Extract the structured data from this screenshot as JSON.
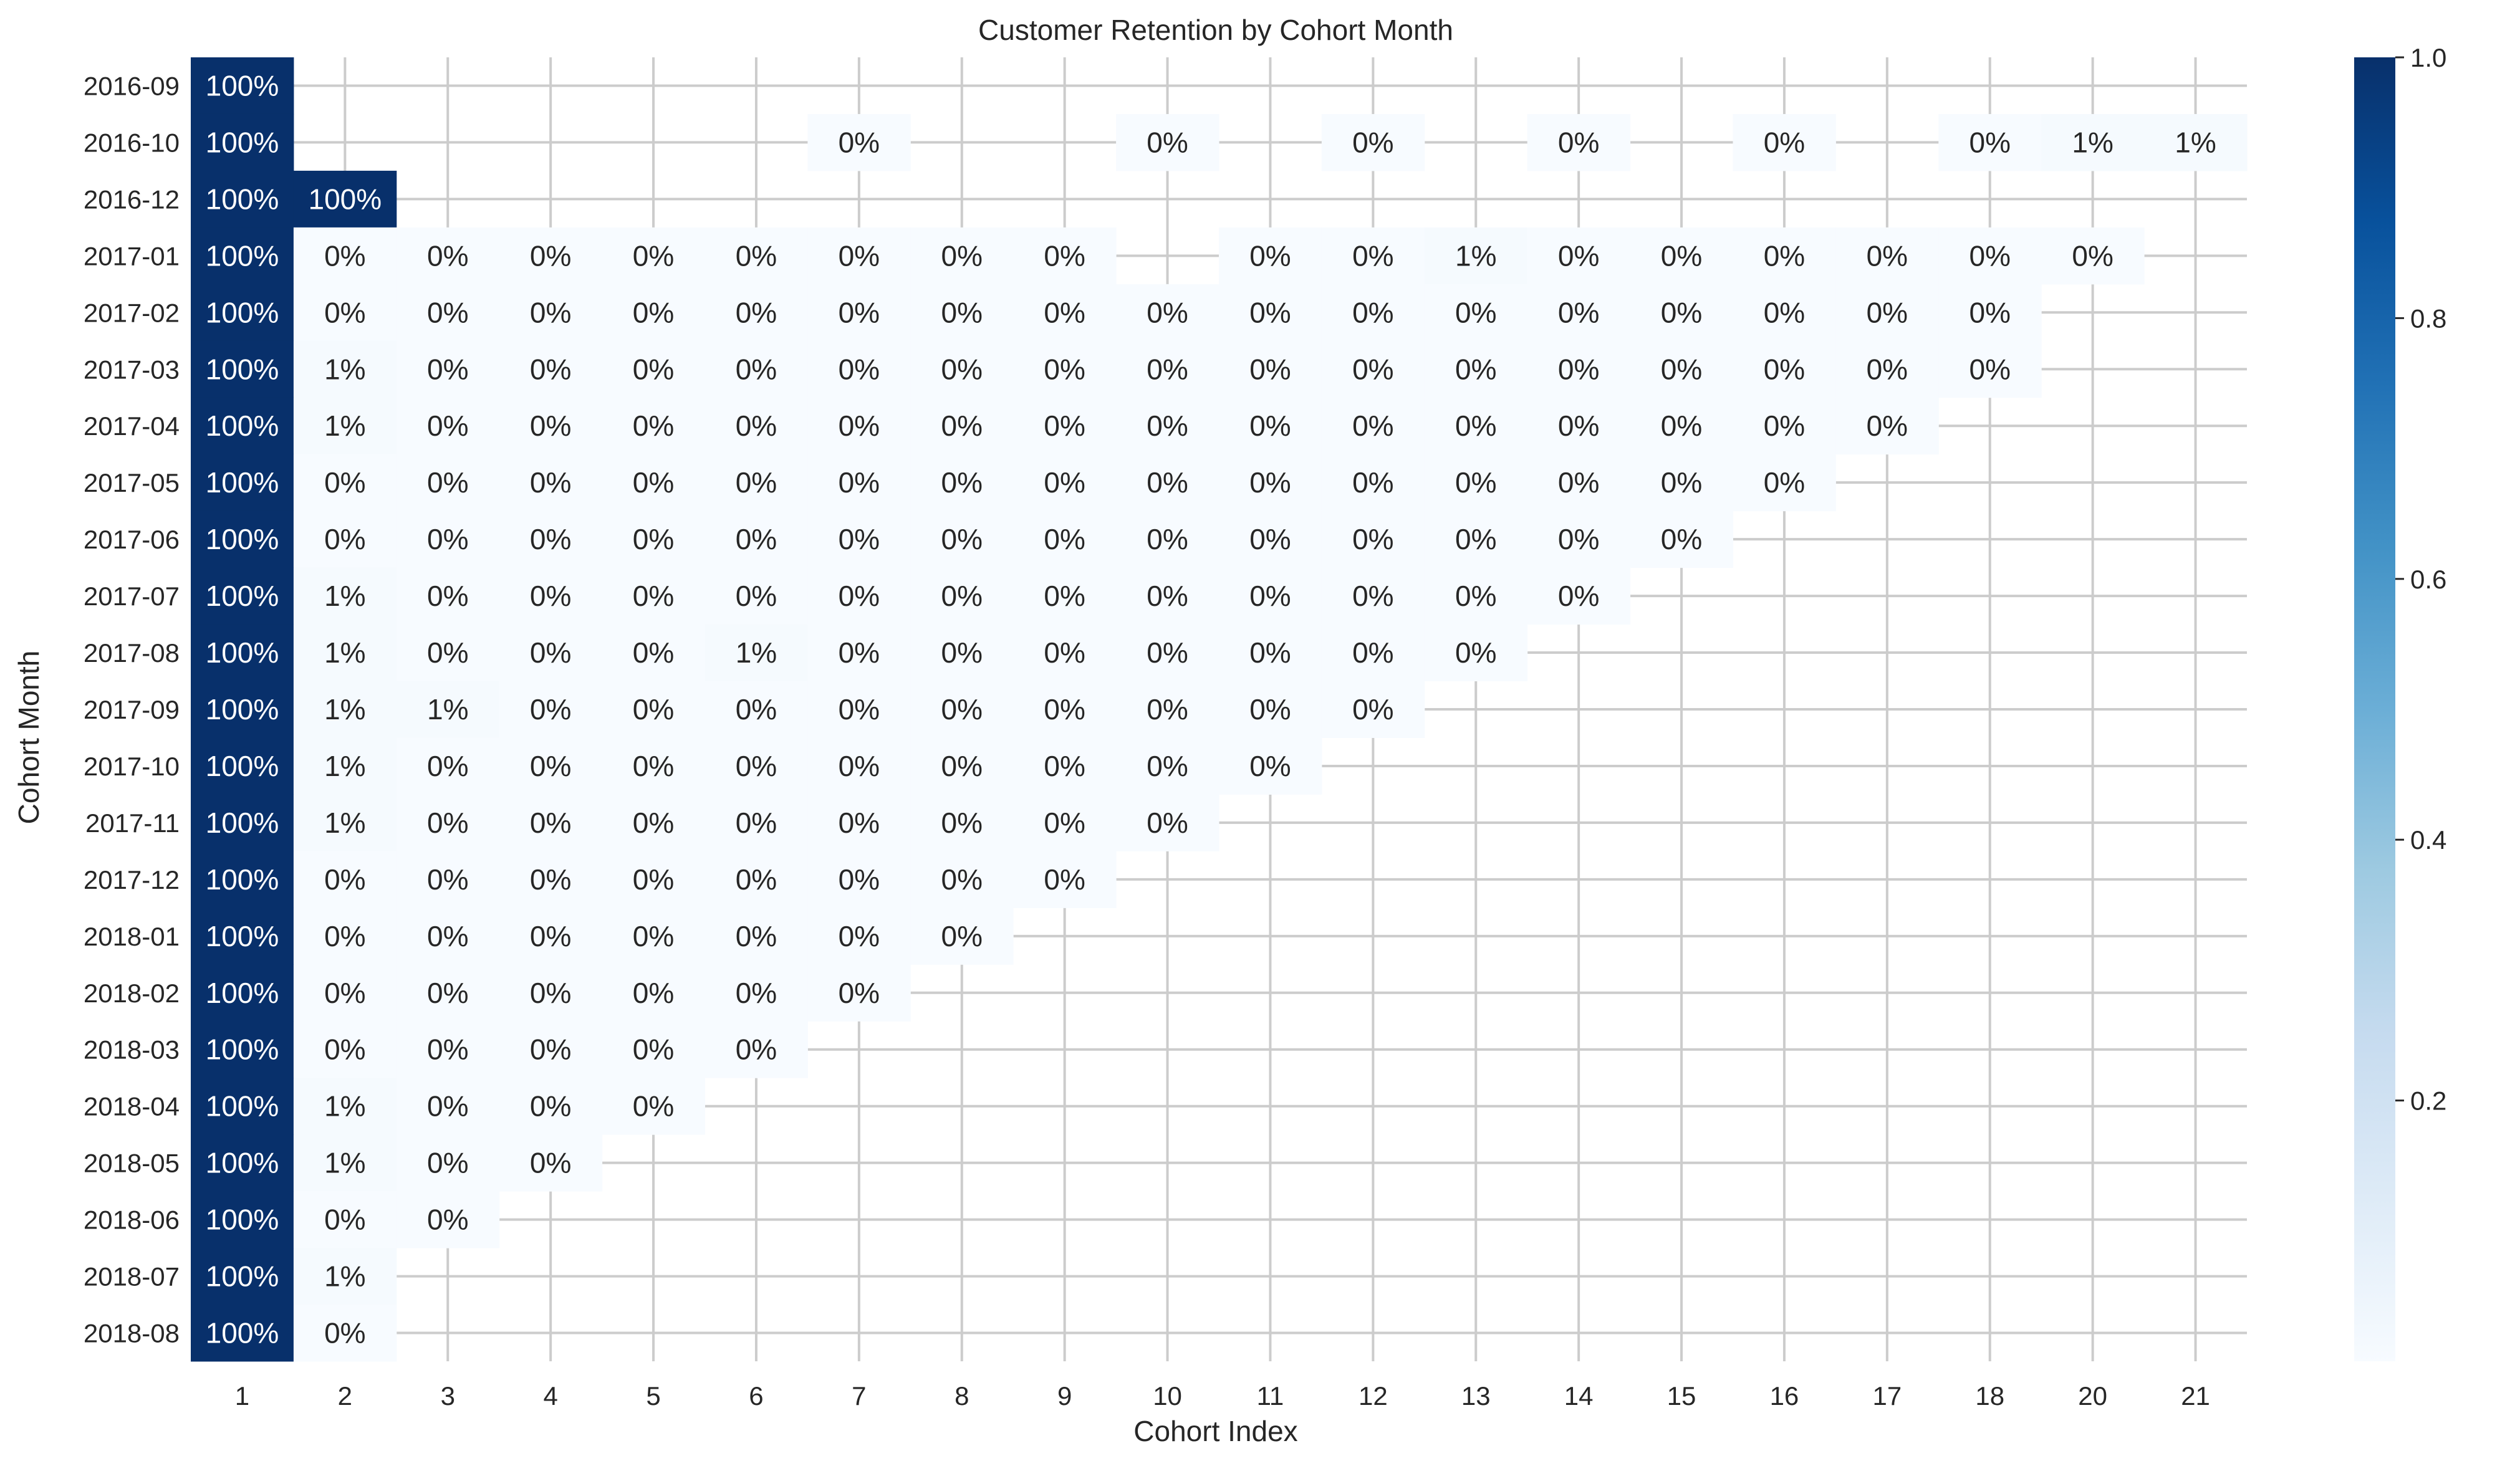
{
  "chart_data": {
    "type": "heatmap",
    "title": "Customer Retention by Cohort Month",
    "xlabel": "Cohort Index",
    "ylabel": "Cohort Month",
    "x_categories": [
      "1",
      "2",
      "3",
      "4",
      "5",
      "6",
      "7",
      "8",
      "9",
      "10",
      "11",
      "12",
      "13",
      "14",
      "15",
      "16",
      "17",
      "18",
      "20",
      "21"
    ],
    "y_categories": [
      "2016-09",
      "2016-10",
      "2016-12",
      "2017-01",
      "2017-02",
      "2017-03",
      "2017-04",
      "2017-05",
      "2017-06",
      "2017-07",
      "2017-08",
      "2017-09",
      "2017-10",
      "2017-11",
      "2017-12",
      "2018-01",
      "2018-02",
      "2018-03",
      "2018-04",
      "2018-05",
      "2018-06",
      "2018-07",
      "2018-08"
    ],
    "values": [
      [
        1.0,
        null,
        null,
        null,
        null,
        null,
        null,
        null,
        null,
        null,
        null,
        null,
        null,
        null,
        null,
        null,
        null,
        null,
        null,
        null
      ],
      [
        1.0,
        null,
        null,
        null,
        null,
        null,
        0.0,
        null,
        null,
        0.0,
        null,
        0.0,
        null,
        0.0,
        null,
        0.0,
        null,
        0.0,
        0.01,
        0.01
      ],
      [
        1.0,
        1.0,
        null,
        null,
        null,
        null,
        null,
        null,
        null,
        null,
        null,
        null,
        null,
        null,
        null,
        null,
        null,
        null,
        null,
        null
      ],
      [
        1.0,
        0.0,
        0.0,
        0.0,
        0.0,
        0.0,
        0.0,
        0.0,
        0.0,
        null,
        0.0,
        0.0,
        0.01,
        0.0,
        0.0,
        0.0,
        0.0,
        0.0,
        0.0,
        null
      ],
      [
        1.0,
        0.0,
        0.0,
        0.0,
        0.0,
        0.0,
        0.0,
        0.0,
        0.0,
        0.0,
        0.0,
        0.0,
        0.0,
        0.0,
        0.0,
        0.0,
        0.0,
        0.0,
        null,
        null
      ],
      [
        1.0,
        0.01,
        0.0,
        0.0,
        0.0,
        0.0,
        0.0,
        0.0,
        0.0,
        0.0,
        0.0,
        0.0,
        0.0,
        0.0,
        0.0,
        0.0,
        0.0,
        0.0,
        null,
        null
      ],
      [
        1.0,
        0.01,
        0.0,
        0.0,
        0.0,
        0.0,
        0.0,
        0.0,
        0.0,
        0.0,
        0.0,
        0.0,
        0.0,
        0.0,
        0.0,
        0.0,
        0.0,
        null,
        null,
        null
      ],
      [
        1.0,
        0.0,
        0.0,
        0.0,
        0.0,
        0.0,
        0.0,
        0.0,
        0.0,
        0.0,
        0.0,
        0.0,
        0.0,
        0.0,
        0.0,
        0.0,
        null,
        null,
        null,
        null
      ],
      [
        1.0,
        0.0,
        0.0,
        0.0,
        0.0,
        0.0,
        0.0,
        0.0,
        0.0,
        0.0,
        0.0,
        0.0,
        0.0,
        0.0,
        0.0,
        null,
        null,
        null,
        null,
        null
      ],
      [
        1.0,
        0.01,
        0.0,
        0.0,
        0.0,
        0.0,
        0.0,
        0.0,
        0.0,
        0.0,
        0.0,
        0.0,
        0.0,
        0.0,
        null,
        null,
        null,
        null,
        null,
        null
      ],
      [
        1.0,
        0.01,
        0.0,
        0.0,
        0.0,
        0.01,
        0.0,
        0.0,
        0.0,
        0.0,
        0.0,
        0.0,
        0.0,
        null,
        null,
        null,
        null,
        null,
        null,
        null
      ],
      [
        1.0,
        0.01,
        0.01,
        0.0,
        0.0,
        0.0,
        0.0,
        0.0,
        0.0,
        0.0,
        0.0,
        0.0,
        null,
        null,
        null,
        null,
        null,
        null,
        null,
        null
      ],
      [
        1.0,
        0.01,
        0.0,
        0.0,
        0.0,
        0.0,
        0.0,
        0.0,
        0.0,
        0.0,
        0.0,
        null,
        null,
        null,
        null,
        null,
        null,
        null,
        null,
        null
      ],
      [
        1.0,
        0.01,
        0.0,
        0.0,
        0.0,
        0.0,
        0.0,
        0.0,
        0.0,
        0.0,
        null,
        null,
        null,
        null,
        null,
        null,
        null,
        null,
        null,
        null
      ],
      [
        1.0,
        0.0,
        0.0,
        0.0,
        0.0,
        0.0,
        0.0,
        0.0,
        0.0,
        null,
        null,
        null,
        null,
        null,
        null,
        null,
        null,
        null,
        null,
        null
      ],
      [
        1.0,
        0.0,
        0.0,
        0.0,
        0.0,
        0.0,
        0.0,
        0.0,
        null,
        null,
        null,
        null,
        null,
        null,
        null,
        null,
        null,
        null,
        null,
        null
      ],
      [
        1.0,
        0.0,
        0.0,
        0.0,
        0.0,
        0.0,
        0.0,
        null,
        null,
        null,
        null,
        null,
        null,
        null,
        null,
        null,
        null,
        null,
        null,
        null
      ],
      [
        1.0,
        0.0,
        0.0,
        0.0,
        0.0,
        0.0,
        null,
        null,
        null,
        null,
        null,
        null,
        null,
        null,
        null,
        null,
        null,
        null,
        null,
        null
      ],
      [
        1.0,
        0.01,
        0.0,
        0.0,
        0.0,
        null,
        null,
        null,
        null,
        null,
        null,
        null,
        null,
        null,
        null,
        null,
        null,
        null,
        null,
        null
      ],
      [
        1.0,
        0.01,
        0.0,
        0.0,
        null,
        null,
        null,
        null,
        null,
        null,
        null,
        null,
        null,
        null,
        null,
        null,
        null,
        null,
        null,
        null
      ],
      [
        1.0,
        0.0,
        0.0,
        null,
        null,
        null,
        null,
        null,
        null,
        null,
        null,
        null,
        null,
        null,
        null,
        null,
        null,
        null,
        null,
        null
      ],
      [
        1.0,
        0.01,
        null,
        null,
        null,
        null,
        null,
        null,
        null,
        null,
        null,
        null,
        null,
        null,
        null,
        null,
        null,
        null,
        null,
        null
      ],
      [
        1.0,
        0.0,
        null,
        null,
        null,
        null,
        null,
        null,
        null,
        null,
        null,
        null,
        null,
        null,
        null,
        null,
        null,
        null,
        null,
        null
      ]
    ],
    "cell_labels": [
      [
        "100%",
        "",
        "",
        "",
        "",
        "",
        "",
        "",
        "",
        "",
        "",
        "",
        "",
        "",
        "",
        "",
        "",
        "",
        "",
        ""
      ],
      [
        "100%",
        "",
        "",
        "",
        "",
        "",
        "0%",
        "",
        "",
        "0%",
        "",
        "0%",
        "",
        "0%",
        "",
        "0%",
        "",
        "0%",
        "1%",
        "1%"
      ],
      [
        "100%",
        "100%",
        "",
        "",
        "",
        "",
        "",
        "",
        "",
        "",
        "",
        "",
        "",
        "",
        "",
        "",
        "",
        "",
        "",
        ""
      ],
      [
        "100%",
        "0%",
        "0%",
        "0%",
        "0%",
        "0%",
        "0%",
        "0%",
        "0%",
        "",
        "0%",
        "0%",
        "1%",
        "0%",
        "0%",
        "0%",
        "0%",
        "0%",
        "0%",
        ""
      ],
      [
        "100%",
        "0%",
        "0%",
        "0%",
        "0%",
        "0%",
        "0%",
        "0%",
        "0%",
        "0%",
        "0%",
        "0%",
        "0%",
        "0%",
        "0%",
        "0%",
        "0%",
        "0%",
        "",
        ""
      ],
      [
        "100%",
        "1%",
        "0%",
        "0%",
        "0%",
        "0%",
        "0%",
        "0%",
        "0%",
        "0%",
        "0%",
        "0%",
        "0%",
        "0%",
        "0%",
        "0%",
        "0%",
        "0%",
        "",
        ""
      ],
      [
        "100%",
        "1%",
        "0%",
        "0%",
        "0%",
        "0%",
        "0%",
        "0%",
        "0%",
        "0%",
        "0%",
        "0%",
        "0%",
        "0%",
        "0%",
        "0%",
        "0%",
        "",
        "",
        ""
      ],
      [
        "100%",
        "0%",
        "0%",
        "0%",
        "0%",
        "0%",
        "0%",
        "0%",
        "0%",
        "0%",
        "0%",
        "0%",
        "0%",
        "0%",
        "0%",
        "0%",
        "",
        "",
        "",
        ""
      ],
      [
        "100%",
        "0%",
        "0%",
        "0%",
        "0%",
        "0%",
        "0%",
        "0%",
        "0%",
        "0%",
        "0%",
        "0%",
        "0%",
        "0%",
        "0%",
        "",
        "",
        "",
        "",
        ""
      ],
      [
        "100%",
        "1%",
        "0%",
        "0%",
        "0%",
        "0%",
        "0%",
        "0%",
        "0%",
        "0%",
        "0%",
        "0%",
        "0%",
        "0%",
        "",
        "",
        "",
        "",
        "",
        ""
      ],
      [
        "100%",
        "1%",
        "0%",
        "0%",
        "0%",
        "1%",
        "0%",
        "0%",
        "0%",
        "0%",
        "0%",
        "0%",
        "0%",
        "",
        "",
        "",
        "",
        "",
        "",
        ""
      ],
      [
        "100%",
        "1%",
        "1%",
        "0%",
        "0%",
        "0%",
        "0%",
        "0%",
        "0%",
        "0%",
        "0%",
        "0%",
        "",
        "",
        "",
        "",
        "",
        "",
        "",
        ""
      ],
      [
        "100%",
        "1%",
        "0%",
        "0%",
        "0%",
        "0%",
        "0%",
        "0%",
        "0%",
        "0%",
        "0%",
        "",
        "",
        "",
        "",
        "",
        "",
        "",
        "",
        ""
      ],
      [
        "100%",
        "1%",
        "0%",
        "0%",
        "0%",
        "0%",
        "0%",
        "0%",
        "0%",
        "0%",
        "",
        "",
        "",
        "",
        "",
        "",
        "",
        "",
        "",
        ""
      ],
      [
        "100%",
        "0%",
        "0%",
        "0%",
        "0%",
        "0%",
        "0%",
        "0%",
        "0%",
        "",
        "",
        "",
        "",
        "",
        "",
        "",
        "",
        "",
        "",
        ""
      ],
      [
        "100%",
        "0%",
        "0%",
        "0%",
        "0%",
        "0%",
        "0%",
        "0%",
        "",
        "",
        "",
        "",
        "",
        "",
        "",
        "",
        "",
        "",
        "",
        ""
      ],
      [
        "100%",
        "0%",
        "0%",
        "0%",
        "0%",
        "0%",
        "0%",
        "",
        "",
        "",
        "",
        "",
        "",
        "",
        "",
        "",
        "",
        "",
        "",
        ""
      ],
      [
        "100%",
        "0%",
        "0%",
        "0%",
        "0%",
        "0%",
        "",
        "",
        "",
        "",
        "",
        "",
        "",
        "",
        "",
        "",
        "",
        "",
        "",
        ""
      ],
      [
        "100%",
        "1%",
        "0%",
        "0%",
        "0%",
        "",
        "",
        "",
        "",
        "",
        "",
        "",
        "",
        "",
        "",
        "",
        "",
        "",
        "",
        ""
      ],
      [
        "100%",
        "1%",
        "0%",
        "0%",
        "",
        "",
        "",
        "",
        "",
        "",
        "",
        "",
        "",
        "",
        "",
        "",
        "",
        "",
        "",
        ""
      ],
      [
        "100%",
        "0%",
        "0%",
        "",
        "",
        "",
        "",
        "",
        "",
        "",
        "",
        "",
        "",
        "",
        "",
        "",
        "",
        "",
        "",
        ""
      ],
      [
        "100%",
        "1%",
        "",
        "",
        "",
        "",
        "",
        "",
        "",
        "",
        "",
        "",
        "",
        "",
        "",
        "",
        "",
        "",
        "",
        ""
      ],
      [
        "100%",
        "0%",
        "",
        "",
        "",
        "",
        "",
        "",
        "",
        "",
        "",
        "",
        "",
        "",
        "",
        "",
        "",
        "",
        "",
        ""
      ]
    ],
    "colormap": "Blues",
    "colorbar": {
      "min": 0.0,
      "max": 1.0,
      "ticks": [
        "0.2",
        "0.4",
        "0.6",
        "0.8",
        "1.0"
      ],
      "tick_values": [
        0.2,
        0.4,
        0.6,
        0.8,
        1.0
      ]
    },
    "grid": true,
    "colors": {
      "low": "#f7fbff",
      "high": "#08306b",
      "grid": "#cccccc",
      "text_dark": "#262626",
      "text_light": "#ffffff"
    }
  }
}
